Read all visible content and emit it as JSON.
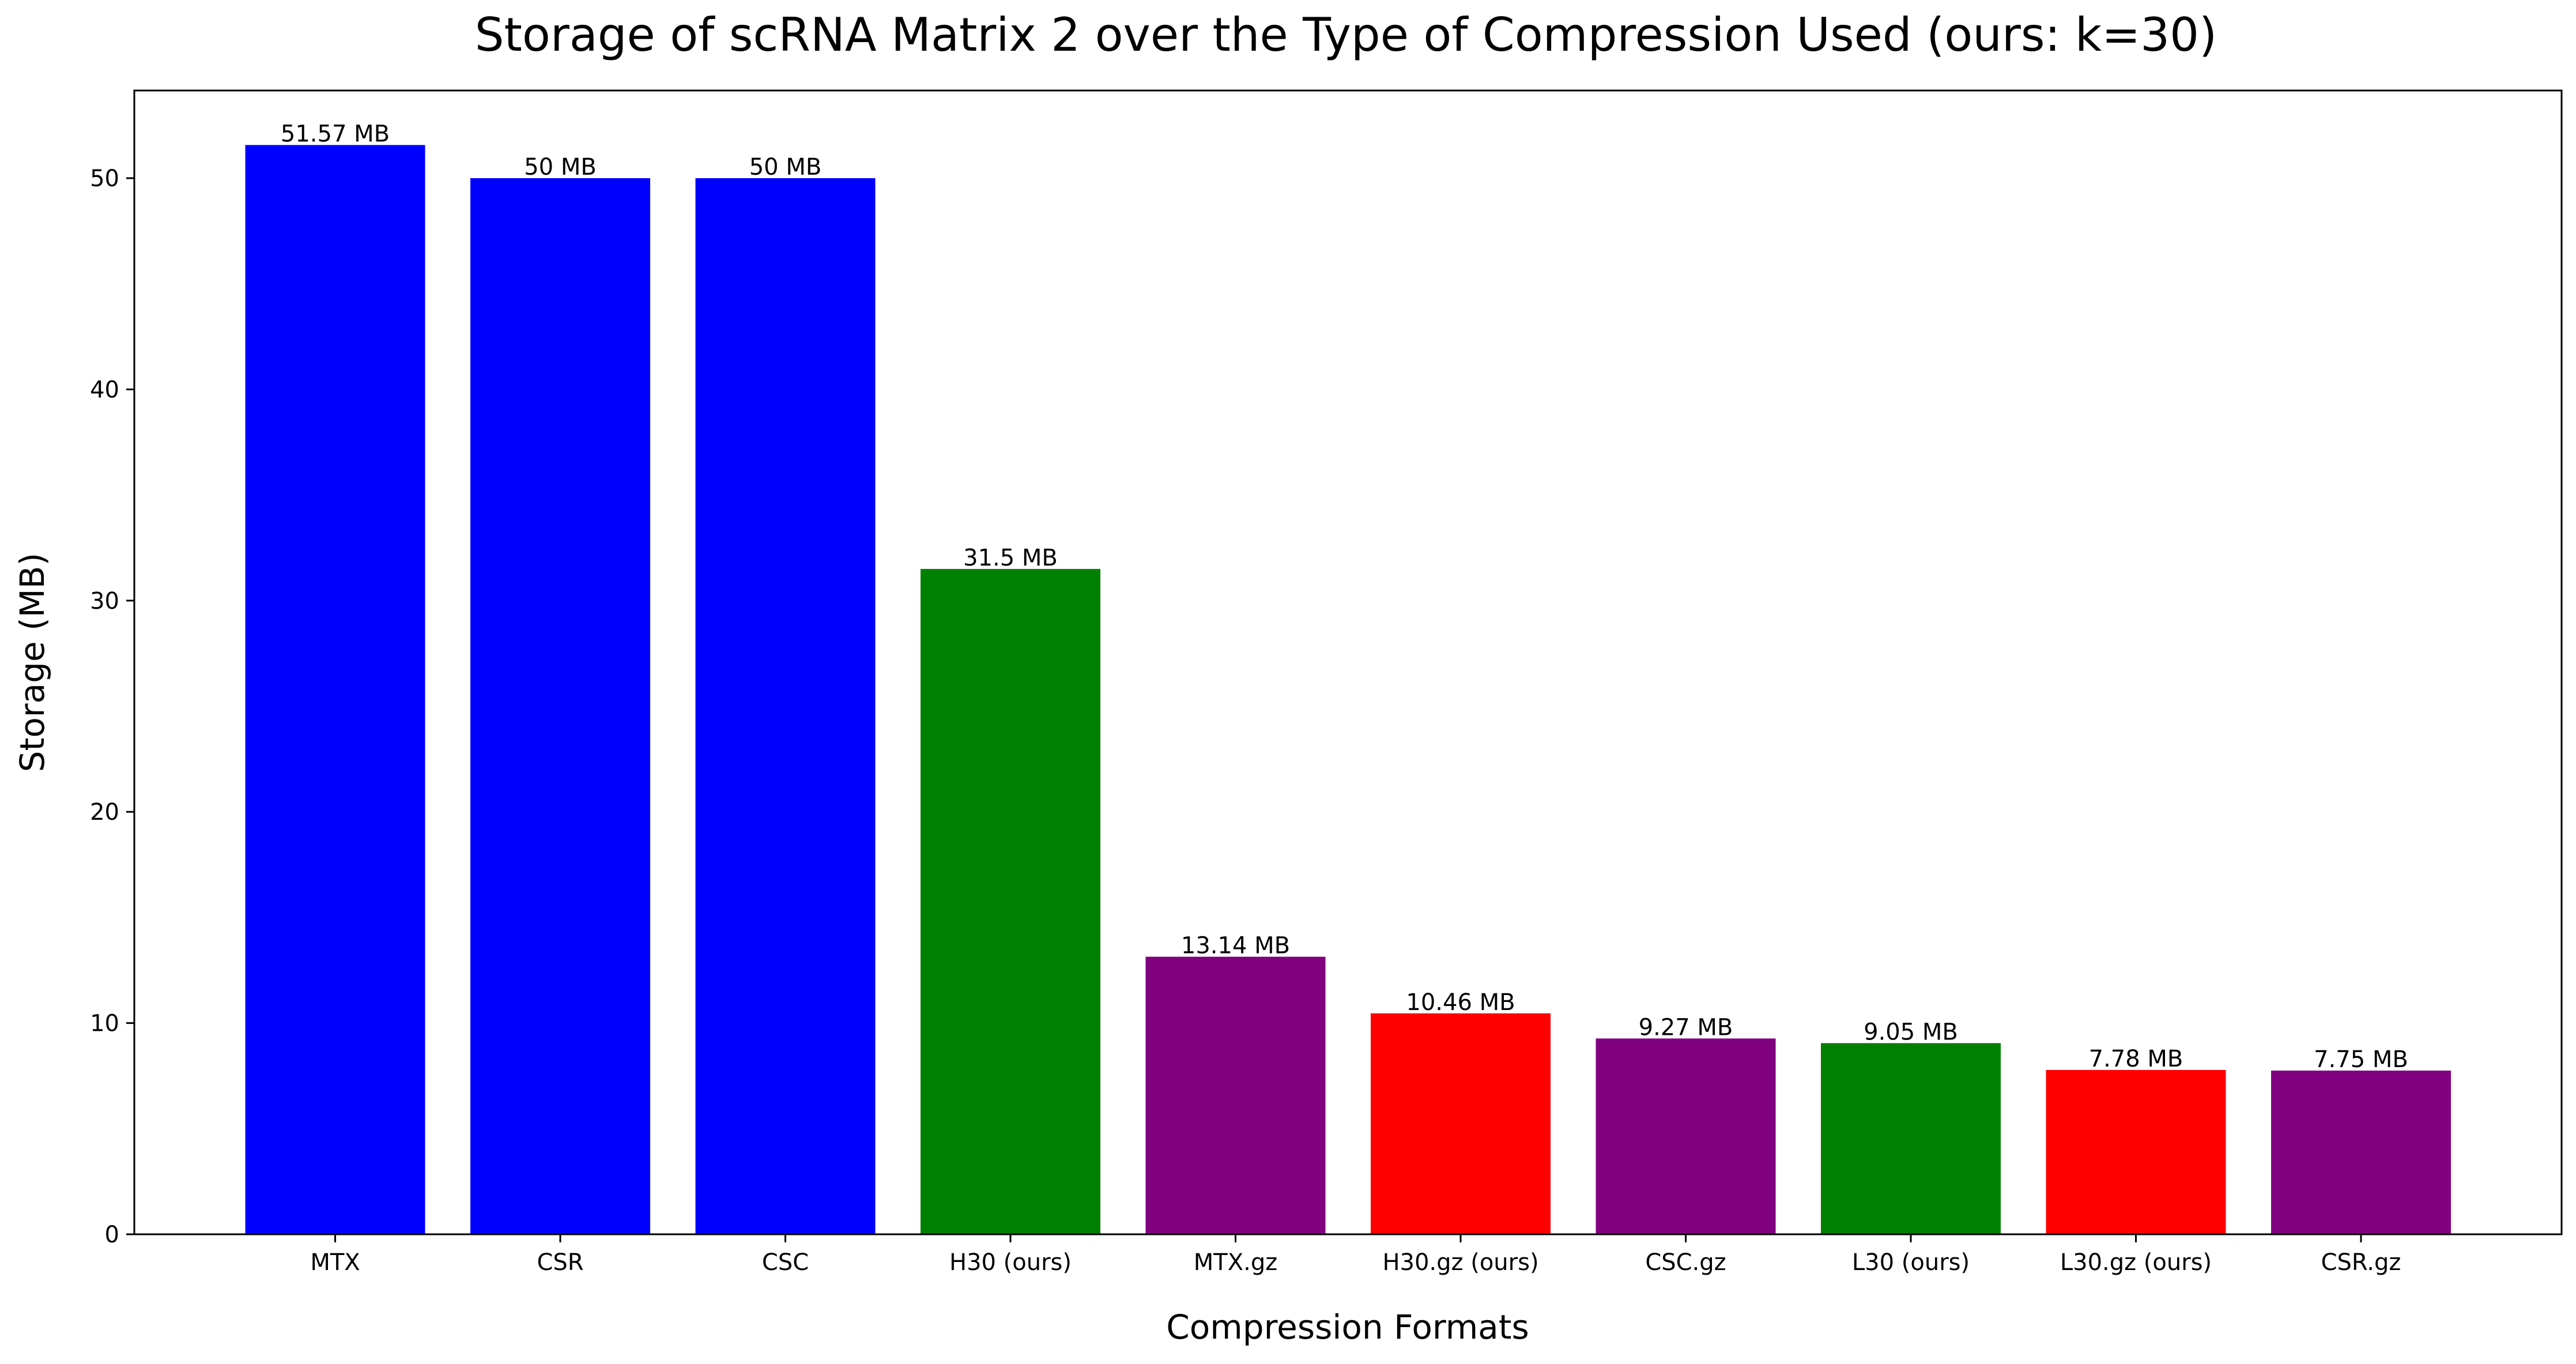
{
  "chart_data": {
    "type": "bar",
    "title": "Storage of scRNA Matrix 2 over the Type of Compression Used (ours: k=30)",
    "xlabel": "Compression Formats",
    "ylabel": "Storage (MB)",
    "ylim": [
      0,
      54.15
    ],
    "yticks": [
      0,
      10,
      20,
      30,
      40,
      50
    ],
    "grid": false,
    "legend": "none",
    "categories": [
      "MTX",
      "CSR",
      "CSC",
      "H30 (ours)",
      "MTX.gz",
      "H30.gz (ours)",
      "CSC.gz",
      "L30 (ours)",
      "L30.gz (ours)",
      "CSR.gz"
    ],
    "values": [
      51.57,
      50,
      50,
      31.5,
      13.14,
      10.46,
      9.27,
      9.05,
      7.78,
      7.75
    ],
    "data_labels": [
      "51.57 MB",
      "50 MB",
      "50 MB",
      "31.5 MB",
      "13.14 MB",
      "10.46 MB",
      "9.27 MB",
      "9.05 MB",
      "7.78 MB",
      "7.75 MB"
    ],
    "colors": [
      "#0000ff",
      "#0000ff",
      "#0000ff",
      "#008000",
      "#800080",
      "#ff0000",
      "#800080",
      "#008000",
      "#ff0000",
      "#800080"
    ]
  }
}
